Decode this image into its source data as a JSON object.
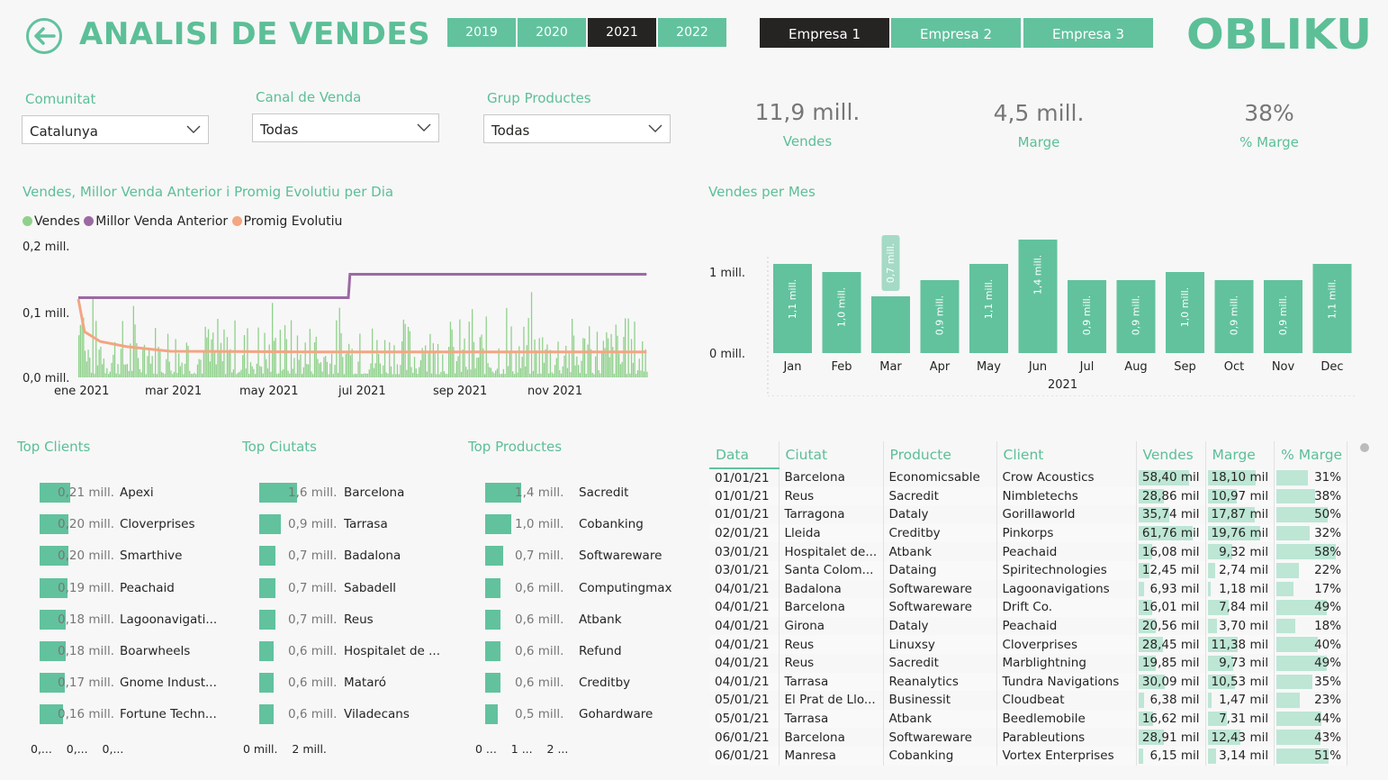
{
  "header": {
    "title": "ANALISI DE VENDES",
    "years": [
      "2019",
      "2020",
      "2021",
      "2022"
    ],
    "selected_year": "2021",
    "companies": [
      "Empresa 1",
      "Empresa 2",
      "Empresa 3"
    ],
    "selected_company": "Empresa 1",
    "logo_text": "OBLIKU",
    "accent_color": "#62c29e",
    "selected_color": "#252423"
  },
  "filters": [
    {
      "label": "Comunitat",
      "value": "Catalunya"
    },
    {
      "label": "Canal de Venda",
      "value": "Todas"
    },
    {
      "label": "Grup Productes",
      "value": "Todas"
    }
  ],
  "kpis": [
    {
      "value": "11,9 mill.",
      "label": "Vendes"
    },
    {
      "value": "4,5 mill.",
      "label": "Marge"
    },
    {
      "value": "38%",
      "label": "% Marge"
    }
  ],
  "line_chart": {
    "title": "Vendes, Millor Venda Anterior i Promig Evolutiu per Dia",
    "legend": [
      {
        "name": "Vendes",
        "color": "#8fd18b"
      },
      {
        "name": "Millor Venda Anterior",
        "color": "#9b6aa3"
      },
      {
        "name": "Promig Evolutiu",
        "color": "#f4a582"
      }
    ],
    "y_ticks": [
      "0,2 mill.",
      "0,1 mill.",
      "0,0 mill."
    ],
    "x_ticks": [
      "ene 2021",
      "mar 2021",
      "may 2021",
      "jul 2021",
      "sep 2021",
      "nov 2021"
    ]
  },
  "bar_chart": {
    "title": "Vendes per Mes",
    "y_ticks": [
      "1 mill.",
      "0 mill."
    ],
    "x_axis_label": "2021"
  },
  "chart_data": [
    {
      "type": "line",
      "title": "Vendes, Millor Venda Anterior i Promig Evolutiu per Dia",
      "x_range": [
        "2021-01-01",
        "2021-12-31"
      ],
      "ylim": [
        0,
        0.2
      ],
      "y_unit": "mill.",
      "series": [
        {
          "name": "Millor Venda Anterior",
          "x": [
            "2021-01-01",
            "2021-06-23",
            "2021-06-24",
            "2021-12-31"
          ],
          "values": [
            0.122,
            0.122,
            0.158,
            0.158
          ]
        },
        {
          "name": "Promig Evolutiu",
          "x": [
            "2021-01-01",
            "2021-01-05",
            "2021-01-15",
            "2021-02-01",
            "2021-03-01",
            "2021-06-01",
            "2021-12-31"
          ],
          "values": [
            0.12,
            0.07,
            0.055,
            0.047,
            0.04,
            0.039,
            0.039
          ]
        },
        {
          "name": "Vendes",
          "note_type": "daily bars",
          "approx_mean": 0.033,
          "approx_max": 0.145
        }
      ]
    },
    {
      "type": "bar",
      "title": "Vendes per Mes",
      "categories": [
        "Jan",
        "Feb",
        "Mar",
        "Apr",
        "May",
        "Jun",
        "Jul",
        "Aug",
        "Sep",
        "Oct",
        "Nov",
        "Dec"
      ],
      "values": [
        1.1,
        1.0,
        0.7,
        0.9,
        1.1,
        1.4,
        0.9,
        0.9,
        1.0,
        0.9,
        0.9,
        1.1
      ],
      "data_labels": [
        "1,1 mill.",
        "1,0 mill.",
        "0,7 mill.",
        "0,9 mill.",
        "1,1 mill.",
        "1,4 mill.",
        "0,9 mill.",
        "0,9 mill.",
        "1,0 mill.",
        "0,9 mill.",
        "0,9 mill.",
        "1,1 mill."
      ],
      "xlabel": "2021",
      "ylim": [
        0,
        1.4
      ]
    }
  ],
  "top_clients": {
    "title": "Top Clients",
    "rows": [
      {
        "value": "0,21 mill.",
        "name": "Apexi",
        "frac": 0.21
      },
      {
        "value": "0,20 mill.",
        "name": "Cloverprises",
        "frac": 0.2
      },
      {
        "value": "0,20 mill.",
        "name": "Smarthive",
        "frac": 0.2
      },
      {
        "value": "0,19 mill.",
        "name": "Peachaid",
        "frac": 0.19
      },
      {
        "value": "0,18 mill.",
        "name": "Lagoonavigati...",
        "frac": 0.18
      },
      {
        "value": "0,18 mill.",
        "name": "Boarwheels",
        "frac": 0.18
      },
      {
        "value": "0,17 mill.",
        "name": "Gnome Indust...",
        "frac": 0.17
      },
      {
        "value": "0,16 mill.",
        "name": "Fortune Techn...",
        "frac": 0.16
      }
    ],
    "axis": [
      "0,...",
      "0,...",
      "0,..."
    ]
  },
  "top_cities": {
    "title": "Top Ciutats",
    "rows": [
      {
        "value": "1,6 mill.",
        "name": "Barcelona",
        "frac": 1.6
      },
      {
        "value": "0,9 mill.",
        "name": "Tarrasa",
        "frac": 0.9
      },
      {
        "value": "0,7 mill.",
        "name": "Badalona",
        "frac": 0.7
      },
      {
        "value": "0,7 mill.",
        "name": "Sabadell",
        "frac": 0.7
      },
      {
        "value": "0,7 mill.",
        "name": "Reus",
        "frac": 0.7
      },
      {
        "value": "0,6 mill.",
        "name": "Hospitalet de ...",
        "frac": 0.6
      },
      {
        "value": "0,6 mill.",
        "name": "Mataró",
        "frac": 0.6
      },
      {
        "value": "0,6 mill.",
        "name": "Viladecans",
        "frac": 0.6
      }
    ],
    "axis": [
      "0 mill.",
      "2 mill."
    ]
  },
  "top_products": {
    "title": "Top Productes",
    "rows": [
      {
        "value": "1,4 mill.",
        "name": "Sacredit",
        "frac": 1.4
      },
      {
        "value": "1,0 mill.",
        "name": "Cobanking",
        "frac": 1.0
      },
      {
        "value": "0,7 mill.",
        "name": "Softwareware",
        "frac": 0.7
      },
      {
        "value": "0,6 mill.",
        "name": "Computingmax",
        "frac": 0.6
      },
      {
        "value": "0,6 mill.",
        "name": "Atbank",
        "frac": 0.6
      },
      {
        "value": "0,6 mill.",
        "name": "Refund",
        "frac": 0.6
      },
      {
        "value": "0,6 mill.",
        "name": "Creditby",
        "frac": 0.6
      },
      {
        "value": "0,5 mill.",
        "name": "Gohardware",
        "frac": 0.5
      }
    ],
    "axis": [
      "0 ...",
      "1 ...",
      "2 ..."
    ]
  },
  "table": {
    "headers": [
      "Data",
      "Ciutat",
      "Producte",
      "Client",
      "Vendes",
      "Marge",
      "% Marge"
    ],
    "rows": [
      [
        "01/01/21",
        "Barcelona",
        "Economicsable",
        "Crow Acoustics",
        "58,40 mil",
        "18,10 mil",
        "31%"
      ],
      [
        "01/01/21",
        "Reus",
        "Sacredit",
        "Nimbletechs",
        "28,86 mil",
        "10,97 mil",
        "38%"
      ],
      [
        "01/01/21",
        "Tarragona",
        "Dataly",
        "Gorillaworld",
        "35,74 mil",
        "17,87 mil",
        "50%"
      ],
      [
        "02/01/21",
        "Lleida",
        "Creditby",
        "Pinkorps",
        "61,76 mil",
        "19,76 mil",
        "32%"
      ],
      [
        "03/01/21",
        "Hospitalet de...",
        "Atbank",
        "Peachaid",
        "16,08 mil",
        "9,32 mil",
        "58%"
      ],
      [
        "03/01/21",
        "Santa Colom...",
        "Dataing",
        "Spiritechnologies",
        "12,45 mil",
        "2,74 mil",
        "22%"
      ],
      [
        "04/01/21",
        "Badalona",
        "Softwareware",
        "Lagoonavigations",
        "6,93 mil",
        "1,18 mil",
        "17%"
      ],
      [
        "04/01/21",
        "Barcelona",
        "Softwareware",
        "Drift Co.",
        "16,01 mil",
        "7,84 mil",
        "49%"
      ],
      [
        "04/01/21",
        "Girona",
        "Dataly",
        "Peachaid",
        "20,56 mil",
        "3,70 mil",
        "18%"
      ],
      [
        "04/01/21",
        "Reus",
        "Linuxsy",
        "Cloverprises",
        "28,45 mil",
        "11,38 mil",
        "40%"
      ],
      [
        "04/01/21",
        "Reus",
        "Sacredit",
        "Marblightning",
        "19,85 mil",
        "9,73 mil",
        "49%"
      ],
      [
        "04/01/21",
        "Tarrasa",
        "Reanalytics",
        "Tundra Navigations",
        "30,09 mil",
        "10,53 mil",
        "35%"
      ],
      [
        "05/01/21",
        "El Prat de Llo...",
        "Businessit",
        "Cloudbeat",
        "6,38 mil",
        "1,47 mil",
        "23%"
      ],
      [
        "05/01/21",
        "Tarrasa",
        "Atbank",
        "Beedlemobile",
        "16,62 mil",
        "7,31 mil",
        "44%"
      ],
      [
        "06/01/21",
        "Barcelona",
        "Softwareware",
        "Parableutions",
        "28,91 mil",
        "12,43 mil",
        "43%"
      ],
      [
        "06/01/21",
        "Manresa",
        "Cobanking",
        "Vortex Enterprises",
        "6,15 mil",
        "3,14 mil",
        "51%"
      ]
    ]
  }
}
